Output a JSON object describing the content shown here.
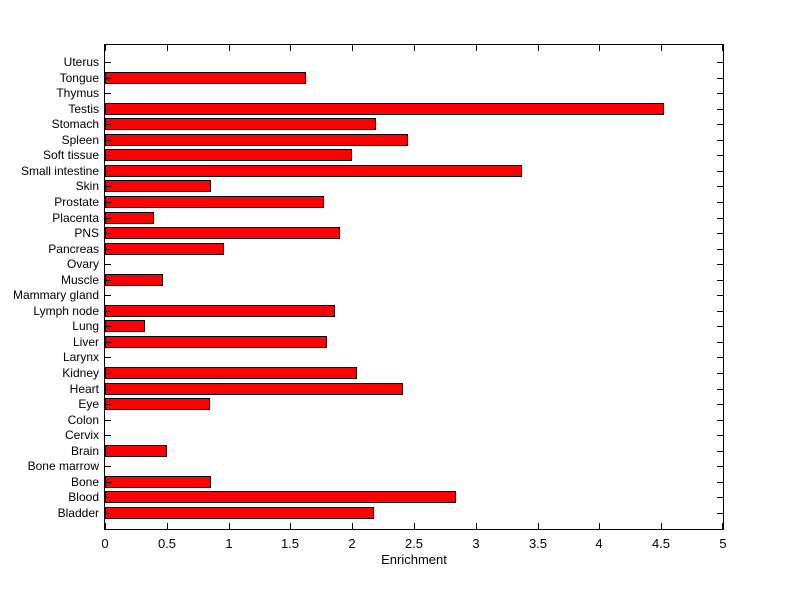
{
  "figure": {
    "background": "#ffffff"
  },
  "chart_data": {
    "type": "bar",
    "orientation": "horizontal",
    "title": "",
    "xlabel": "Enrichment",
    "ylabel": "",
    "xlim": [
      0,
      5
    ],
    "grid": false,
    "legend": "none",
    "bar_color": "#ff0000",
    "bar_edge_color": "#000000",
    "axis_color": "#000000",
    "categories": [
      "Uterus",
      "Tongue",
      "Thymus",
      "Testis",
      "Stomach",
      "Spleen",
      "Soft tissue",
      "Small intestine",
      "Skin",
      "Prostate",
      "Placenta",
      "PNS",
      "Pancreas",
      "Ovary",
      "Muscle",
      "Mammary gland",
      "Lymph node",
      "Lung",
      "Liver",
      "Larynx",
      "Kidney",
      "Heart",
      "Eye",
      "Colon",
      "Cervix",
      "Brain",
      "Bone marrow",
      "Bone",
      "Blood",
      "Bladder"
    ],
    "values": [
      0,
      1.63,
      0,
      4.52,
      2.19,
      2.45,
      2.0,
      3.37,
      0.86,
      1.77,
      0.4,
      1.9,
      0.96,
      0,
      0.47,
      0,
      1.86,
      0.32,
      1.8,
      0,
      2.04,
      2.41,
      0.85,
      0,
      0,
      0.5,
      0,
      0.86,
      2.84,
      2.18
    ],
    "xtick_values": [
      0,
      0.5,
      1,
      1.5,
      2,
      2.5,
      3,
      3.5,
      4,
      4.5,
      5
    ],
    "xtick_labels": [
      "0",
      "0.5",
      "1",
      "1.5",
      "2",
      "2.5",
      "3",
      "3.5",
      "4",
      "4.5",
      "5"
    ]
  }
}
